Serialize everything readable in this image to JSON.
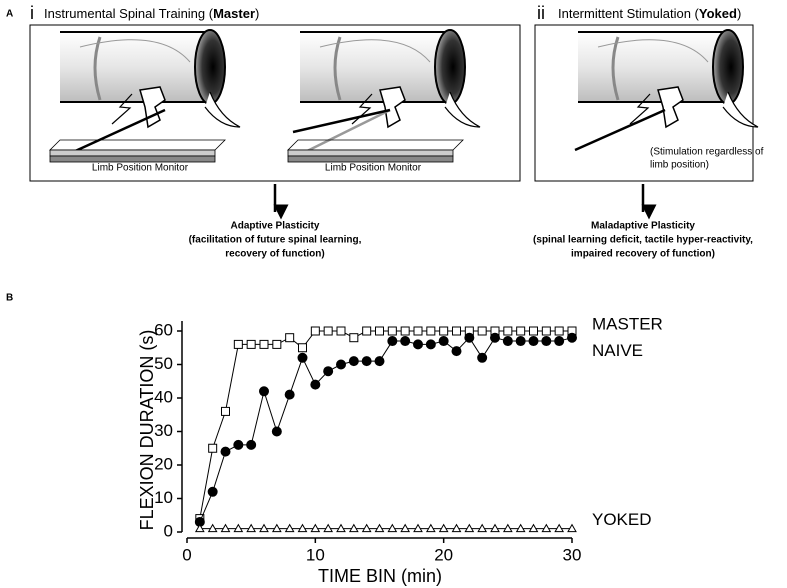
{
  "panel_a": {
    "label": "A",
    "master": {
      "numeral": "i",
      "title_pre": "Instrumental Spinal Training (",
      "title_bold": "Master",
      "title_post": ")",
      "monitor_left": "Limb Position Monitor",
      "monitor_right": "Limb Position Monitor",
      "outcome": "Adaptive Plasticity",
      "outcome_detail": [
        "(facilitation of future spinal learning,",
        "recovery of function)"
      ]
    },
    "yoked": {
      "numeral": "ii",
      "title_pre": "Intermittent Stimulation (",
      "title_bold": "Yoked",
      "title_post": ")",
      "note": [
        "(Stimulation regardless of",
        "limb position)"
      ],
      "outcome": "Maladaptive Plasticity",
      "outcome_detail": [
        "(spinal learning deficit, tactile hyper-reactivity,",
        "impaired recovery of function)"
      ]
    }
  },
  "chart_data": {
    "type": "line",
    "panel_label": "B",
    "x_label": "TIME BIN (min)",
    "y_label": "FLEXION DURATION (s)",
    "x": [
      1,
      2,
      3,
      4,
      5,
      6,
      7,
      8,
      9,
      10,
      11,
      12,
      13,
      14,
      15,
      16,
      17,
      18,
      19,
      20,
      21,
      22,
      23,
      24,
      25,
      26,
      27,
      28,
      29,
      30
    ],
    "series": [
      {
        "name": "MASTER",
        "color": "#000000",
        "marker": "square",
        "values": [
          4,
          25,
          36,
          56,
          56,
          56,
          56,
          58,
          55,
          60,
          60,
          60,
          58,
          60,
          60,
          60,
          60,
          60,
          60,
          60,
          60,
          60,
          60,
          60,
          60,
          60,
          60,
          60,
          60,
          60
        ]
      },
      {
        "name": "NAIVE",
        "color": "#000000",
        "marker": "circle",
        "values": [
          3,
          12,
          24,
          26,
          26,
          42,
          30,
          41,
          52,
          44,
          48,
          50,
          51,
          51,
          51,
          57,
          57,
          56,
          56,
          57,
          54,
          58,
          52,
          58,
          57,
          57,
          57,
          57,
          57,
          58
        ]
      },
      {
        "name": "YOKED",
        "color": "#000000",
        "marker": "triangle",
        "values": [
          1,
          1,
          1,
          1,
          1,
          1,
          1,
          1,
          1,
          1,
          1,
          1,
          1,
          1,
          1,
          1,
          1,
          1,
          1,
          1,
          1,
          1,
          1,
          1,
          1,
          1,
          1,
          1,
          1,
          1
        ]
      }
    ],
    "xlim": [
      0,
      30
    ],
    "xticks": [
      0,
      10,
      20,
      30
    ],
    "ylim": [
      0,
      60
    ],
    "yticks": [
      0,
      10,
      20,
      30,
      40,
      50,
      60
    ],
    "grid": false
  }
}
